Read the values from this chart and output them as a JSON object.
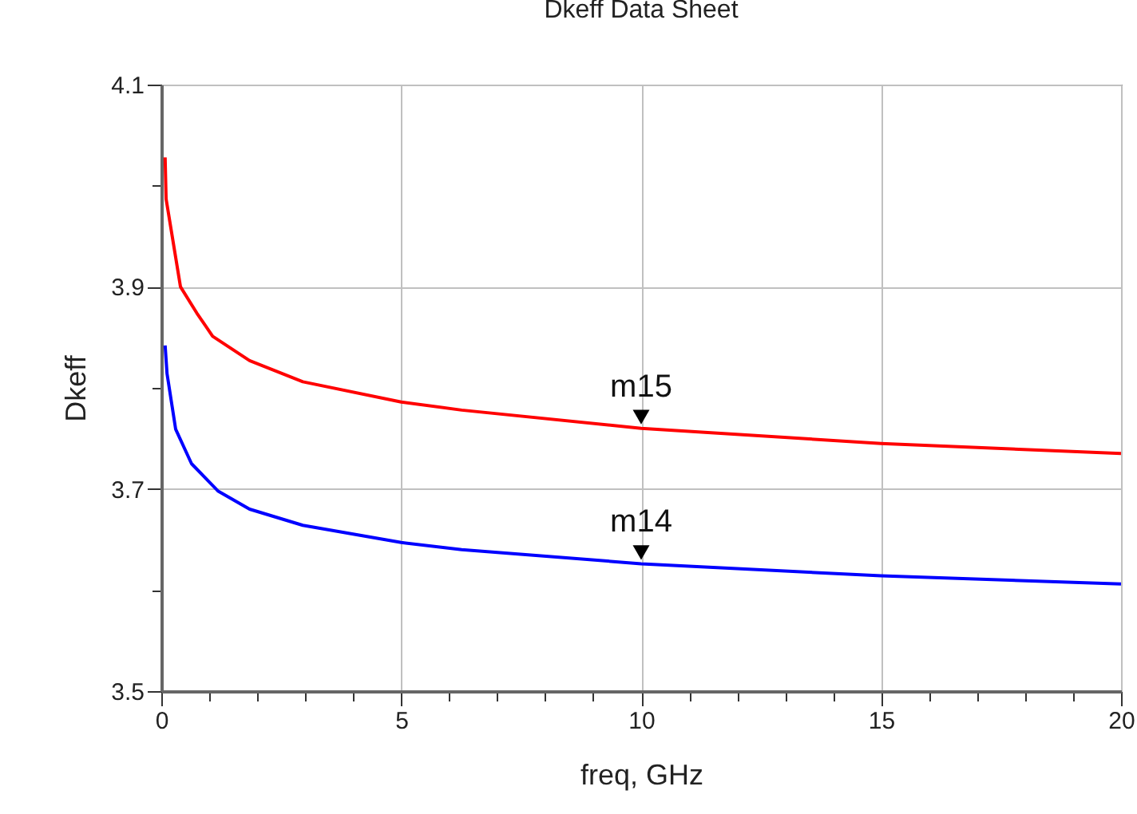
{
  "chart_data": {
    "type": "line",
    "title": "Dkeff Data Sheet",
    "xlabel": "freq, GHz",
    "ylabel": "Dkeff",
    "xlim": [
      0,
      20
    ],
    "ylim": [
      3.5,
      4.1
    ],
    "xticks": [
      0,
      {
        "value": 1,
        "label": null
      },
      {
        "value": 2,
        "label": null
      },
      {
        "value": 3,
        "label": null
      },
      {
        "value": 4,
        "label": null
      },
      5,
      {
        "value": 6,
        "label": null
      },
      {
        "value": 7,
        "label": null
      },
      {
        "value": 8,
        "label": null
      },
      {
        "value": 9,
        "label": null
      },
      10,
      {
        "value": 11,
        "label": null
      },
      {
        "value": 12,
        "label": null
      },
      {
        "value": 13,
        "label": null
      },
      {
        "value": 14,
        "label": null
      },
      15,
      {
        "value": 16,
        "label": null
      },
      {
        "value": 17,
        "label": null
      },
      {
        "value": 18,
        "label": null
      },
      {
        "value": 19,
        "label": null
      },
      20
    ],
    "yticks": [
      3.5,
      {
        "value": 3.6,
        "label": null
      },
      3.7,
      {
        "value": 3.8,
        "label": null
      },
      3.9,
      {
        "value": 4.0,
        "label": null
      },
      4.1
    ],
    "grid": true,
    "series": [
      {
        "color": "#ff0000",
        "x": [
          0.08,
          0.1,
          0.2,
          0.4,
          0.74,
          1.07,
          1.84,
          2.95,
          5,
          6.26,
          10,
          15,
          20
        ],
        "values": [
          4.028,
          3.987,
          3.958,
          3.9,
          3.874,
          3.851,
          3.827,
          3.806,
          3.786,
          3.778,
          3.76,
          3.745,
          3.735
        ]
      },
      {
        "color": "#0000ff",
        "x": [
          0.08,
          0.12,
          0.3,
          0.63,
          1.18,
          1.84,
          2.95,
          5,
          6.26,
          10,
          15,
          20
        ],
        "values": [
          3.842,
          3.814,
          3.759,
          3.725,
          3.698,
          3.68,
          3.664,
          3.647,
          3.64,
          3.626,
          3.614,
          3.606
        ]
      }
    ],
    "annotations": [
      {
        "text": "m15",
        "x": 10,
        "y": 3.76
      },
      {
        "text": "m14",
        "x": 10,
        "y": 3.626
      }
    ]
  }
}
